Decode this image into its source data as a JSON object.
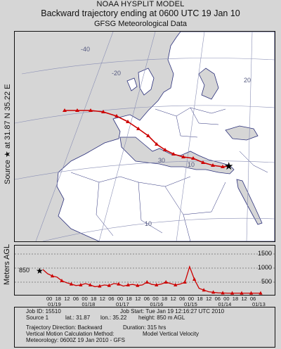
{
  "title": {
    "line1": "NOAA HYSPLIT MODEL",
    "line2": "Backward trajectory ending at 0600 UTC 19 Jan 10",
    "line3": "GFSG Meteorological Data"
  },
  "source_label": "Source ★ at 31.87 N 35.22 E",
  "source_marker": "★",
  "meters_label": "Meters AGL",
  "graticule_labels": [
    "-40",
    "-20",
    "20",
    "30",
    "10",
    "10"
  ],
  "altitude_axis": {
    "ticks": [
      "1500",
      "1000",
      "500"
    ],
    "start_value_label": "850",
    "range": [
      0,
      1700
    ]
  },
  "time_axis": {
    "hour_row": [
      "00",
      "18",
      "12",
      "06",
      "00",
      "18",
      "12",
      "06",
      "00",
      "18",
      "12",
      "06",
      "00",
      "18",
      "12",
      "06",
      "00",
      "18",
      "12",
      "06",
      "00",
      "18",
      "12",
      "06"
    ],
    "date_row": [
      "01/19",
      "01/18",
      "01/17",
      "01/16",
      "01/15",
      "01/14",
      "01/13"
    ]
  },
  "info": {
    "job_id": "Job ID: 15510",
    "job_start": "Job Start: Tue Jan 19 12:16:27 UTC 2010",
    "source": "Source 1",
    "lat": "lat.: 31.87",
    "lon": "lon.: 35.22",
    "height": "height: 850 m AGL",
    "direction": "Trajectory Direction: Backward",
    "duration": "Duration: 315 hrs",
    "vmotion": "Vertical Motion Calculation Method:",
    "vmotion_value": "Model Vertical Velocity",
    "meteorology": "Meteorology: 0600Z 19 Jan 2010 - GFS"
  },
  "colors": {
    "trajectory": "#cc0000",
    "land": "#ffffff",
    "sea": "#d6d6d6",
    "coast": "#2a2f7a",
    "graticule": "#8a8fb5"
  },
  "chart_data": {
    "type": "line",
    "series": [
      {
        "values_m_agl": [
          850,
          700,
          620,
          580,
          450,
          380,
          330,
          280,
          300,
          350,
          300,
          240,
          260,
          300,
          280,
          350,
          330,
          260,
          300,
          320,
          280,
          300,
          400,
          320,
          300,
          330,
          400,
          350,
          300,
          330,
          400,
          950,
          500,
          180,
          120,
          60,
          40,
          20,
          15,
          10,
          10,
          10,
          10,
          10,
          10,
          10,
          10
        ]
      }
    ],
    "x_range_hours": [
      0,
      315
    ],
    "ylim": [
      0,
      1700
    ]
  }
}
